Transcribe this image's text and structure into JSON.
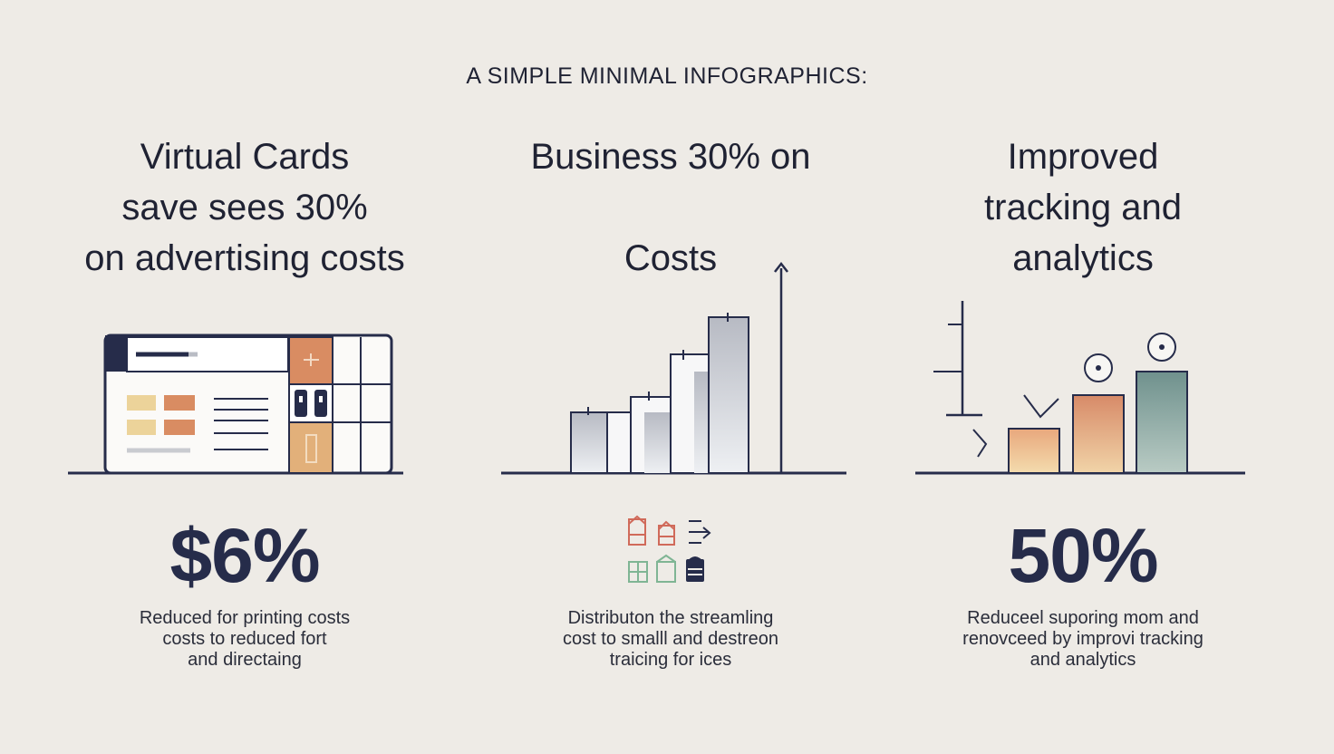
{
  "title": "A SIMPLE MINIMAL INFOGRAPHICS:",
  "columns": [
    {
      "heading_lines": [
        "Virtual Cards",
        "save sees 30%",
        "on advertising costs"
      ],
      "stat": "$6%",
      "desc_lines": [
        "Reduced for printing costs",
        "costs to reduced fort",
        "and directaing"
      ],
      "icon": "browser-window-icon"
    },
    {
      "heading_lines": [
        "Business 30% on",
        "Costs"
      ],
      "stat": "",
      "desc_lines": [
        "Distributon the streamling",
        "cost to smalll and destreon",
        "traicing for ices"
      ],
      "icon": "rising-bar-chart-icon"
    },
    {
      "heading_lines": [
        "Improved",
        "tracking and",
        "analytics"
      ],
      "stat": "50%",
      "desc_lines": [
        "Reduceel suporing mom and",
        "renovceed by improvi tracking",
        "and analytics"
      ],
      "icon": "analytics-bar-chart-icon"
    }
  ],
  "colors": {
    "background": "#eeebe6",
    "ink": "#262c4a",
    "accent_orange": "#d98c62",
    "accent_yellow": "#e8c98a",
    "accent_teal": "#7e9e97",
    "accent_red": "#d06a5a",
    "accent_green": "#7fb594"
  }
}
